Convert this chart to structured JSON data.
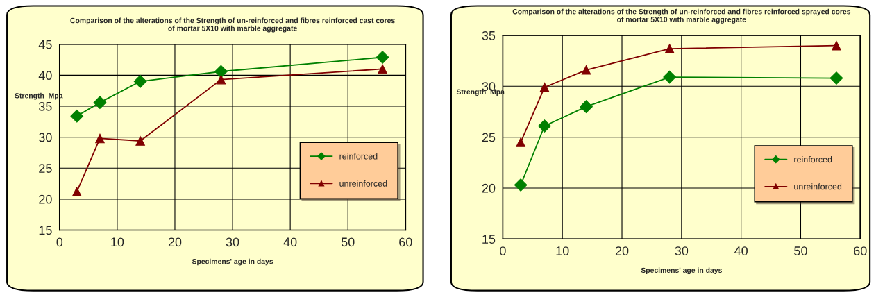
{
  "chart_data": [
    {
      "type": "line",
      "title": "Comparison of the alterations of the Strength of un-reinforced and fibres reinforced cast cores\nof mortar 5X10 with marble aggregate",
      "xlabel": "Specimens' age in days",
      "ylabel": "Strength  Mpa",
      "x": [
        3,
        7,
        14,
        28,
        56
      ],
      "series": [
        {
          "name": "reinforced",
          "color": "#008000",
          "marker": "diamond",
          "values": [
            33.4,
            35.6,
            39.0,
            40.6,
            42.9
          ]
        },
        {
          "name": "unreinforced",
          "color": "#800000",
          "marker": "triangle",
          "values": [
            21.2,
            29.8,
            29.4,
            39.3,
            41.0
          ]
        }
      ],
      "xlim": [
        0,
        60
      ],
      "xticks": [
        0,
        10,
        20,
        30,
        40,
        50,
        60
      ],
      "ylim": [
        15,
        45
      ],
      "yticks": [
        15,
        20,
        25,
        30,
        35,
        40,
        45
      ],
      "grid": true,
      "legend": "right"
    },
    {
      "type": "line",
      "title": "Comparison of the alterations of the Strength of un-reinforced and fibres reinforced sprayed cores\nof mortar 5X10 with marble aggregate",
      "xlabel": "Specimens' age in days",
      "ylabel": "Strength  Mpa",
      "x": [
        3,
        7,
        14,
        28,
        56
      ],
      "series": [
        {
          "name": "reinforced",
          "color": "#008000",
          "marker": "diamond",
          "values": [
            20.3,
            26.1,
            28.0,
            30.9,
            30.8
          ]
        },
        {
          "name": "unreinforced",
          "color": "#800000",
          "marker": "triangle",
          "values": [
            24.5,
            29.9,
            31.6,
            33.7,
            34.0
          ]
        }
      ],
      "xlim": [
        0,
        60
      ],
      "xticks": [
        0,
        10,
        20,
        30,
        40,
        50,
        60
      ],
      "ylim": [
        15,
        35
      ],
      "yticks": [
        15,
        20,
        25,
        30,
        35
      ],
      "grid": true,
      "legend": "right"
    }
  ]
}
